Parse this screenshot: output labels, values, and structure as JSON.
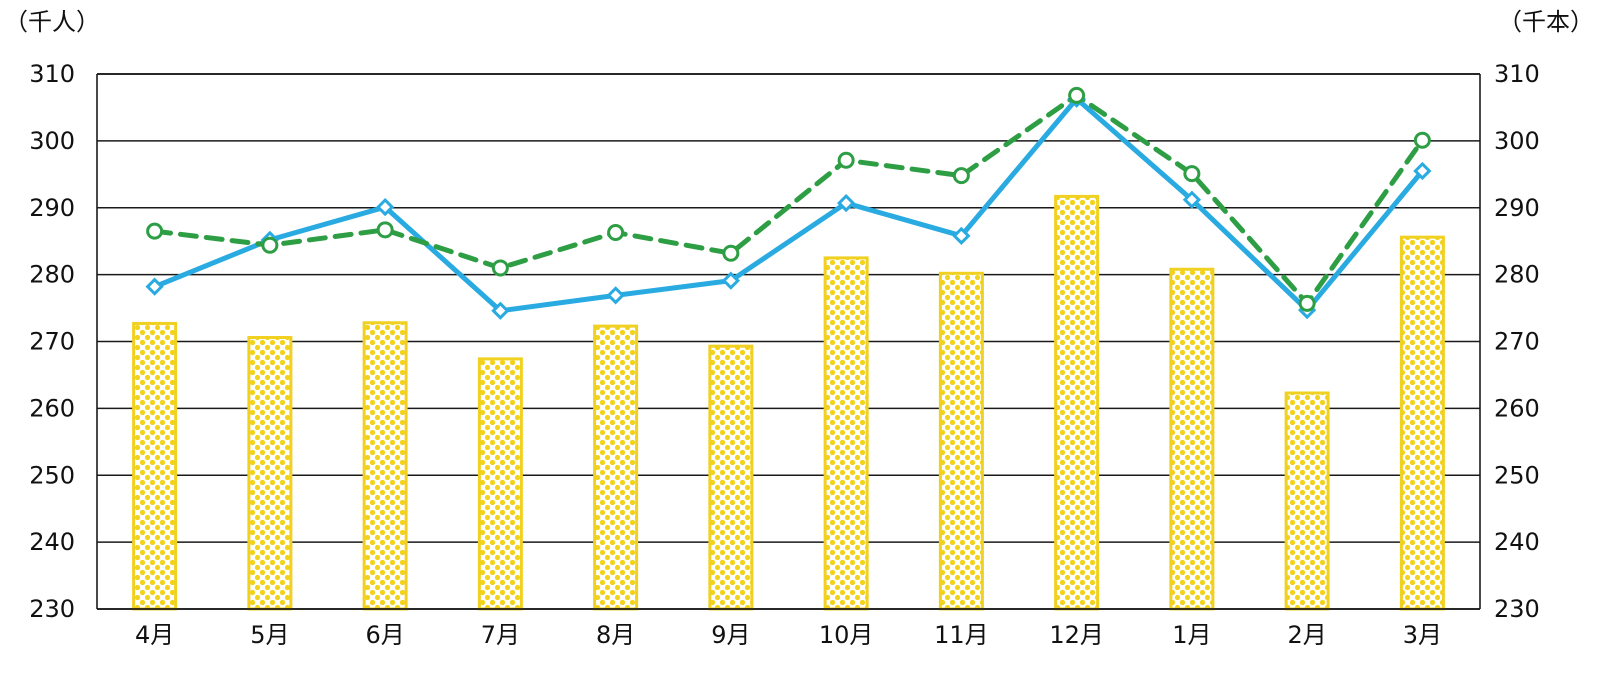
{
  "chart_data": {
    "type": "bar",
    "left_unit": "（千人）",
    "right_unit": "（千本）",
    "categories": [
      "4月",
      "5月",
      "6月",
      "7月",
      "8月",
      "9月",
      "10月",
      "11月",
      "12月",
      "1月",
      "2月",
      "3月"
    ],
    "y_left": {
      "min": 230,
      "max": 310,
      "ticks": [
        "230",
        "240",
        "250",
        "260",
        "270",
        "280",
        "290",
        "300",
        "310"
      ]
    },
    "y_right": {
      "min": 230,
      "max": 310,
      "ticks": [
        "230",
        "240",
        "250",
        "260",
        "270",
        "280",
        "290",
        "300",
        "310"
      ]
    },
    "grid": true,
    "series": [
      {
        "type": "bar",
        "axis": "left",
        "values": [
          272.7,
          270.6,
          272.8,
          267.4,
          272.3,
          269.3,
          282.5,
          280.2,
          291.7,
          280.8,
          262.3,
          285.6
        ],
        "color": "#f0d020",
        "pattern": "dots"
      },
      {
        "type": "line",
        "axis": "left",
        "style": "solid",
        "marker": "diamond",
        "values": [
          278.2,
          285.2,
          290.1,
          274.6,
          276.9,
          279.1,
          290.7,
          285.8,
          306.3,
          291.2,
          274.7,
          295.5
        ],
        "color": "#29abe2"
      },
      {
        "type": "line",
        "axis": "right",
        "style": "dashed",
        "marker": "circle",
        "values": [
          286.5,
          284.4,
          286.7,
          281.0,
          286.3,
          283.2,
          297.1,
          294.8,
          306.8,
          295.1,
          275.7,
          300.1
        ],
        "color": "#2e9e44"
      }
    ]
  }
}
